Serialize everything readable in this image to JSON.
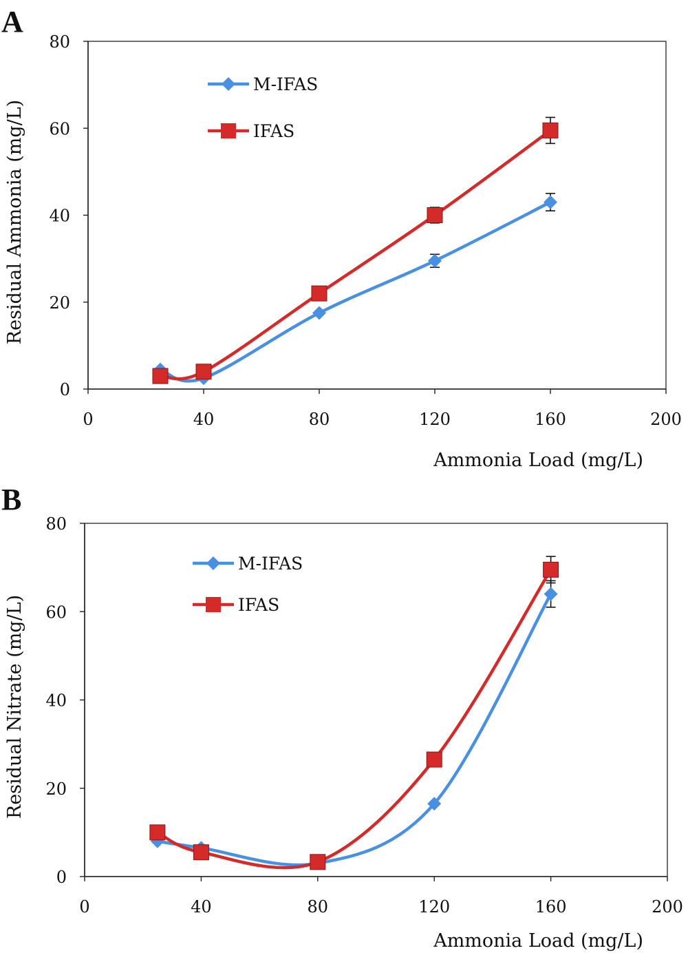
{
  "chart_data": [
    {
      "panel_label": "A",
      "type": "line",
      "xlabel": "Ammonia Load (mg/L)",
      "ylabel": "Residual Ammonia (mg/L)",
      "xlim": [
        0,
        200
      ],
      "ylim": [
        0,
        80
      ],
      "xticks": [
        "0",
        "40",
        "80",
        "120",
        "160",
        "200"
      ],
      "yticks": [
        "0",
        "20",
        "40",
        "60",
        "80"
      ],
      "x": [
        25,
        40,
        80,
        120,
        160
      ],
      "grid": false,
      "legend_position": "top-left",
      "series": [
        {
          "name": "M-IFAS",
          "values": [
            4.5,
            2.5,
            17.5,
            29.5,
            43
          ],
          "errors": [
            0,
            0,
            0,
            1.5,
            2
          ],
          "color": "#4a90e2",
          "marker": "diamond"
        },
        {
          "name": "IFAS",
          "values": [
            3,
            4,
            22,
            40,
            59.5
          ],
          "errors": [
            0,
            0,
            0,
            1.8,
            3
          ],
          "color": "#d42a2a",
          "marker": "square"
        }
      ]
    },
    {
      "panel_label": "B",
      "type": "line",
      "xlabel": "Ammonia Load (mg/L)",
      "ylabel": "Residual Nitrate (mg/L)",
      "xlim": [
        0,
        200
      ],
      "ylim": [
        0,
        80
      ],
      "xticks": [
        "0",
        "40",
        "80",
        "120",
        "160",
        "200"
      ],
      "yticks": [
        "0",
        "20",
        "40",
        "60",
        "80"
      ],
      "x": [
        25,
        40,
        80,
        120,
        160
      ],
      "grid": false,
      "legend_position": "top-left",
      "series": [
        {
          "name": "M-IFAS",
          "values": [
            8,
            6.5,
            3,
            16.5,
            64
          ],
          "errors": [
            0,
            0,
            0,
            0,
            3
          ],
          "color": "#4a90e2",
          "marker": "diamond"
        },
        {
          "name": "IFAS",
          "values": [
            10,
            5.5,
            3.3,
            26.5,
            69.5
          ],
          "errors": [
            0,
            0,
            0,
            0,
            3
          ],
          "color": "#d42a2a",
          "marker": "square"
        }
      ]
    }
  ]
}
